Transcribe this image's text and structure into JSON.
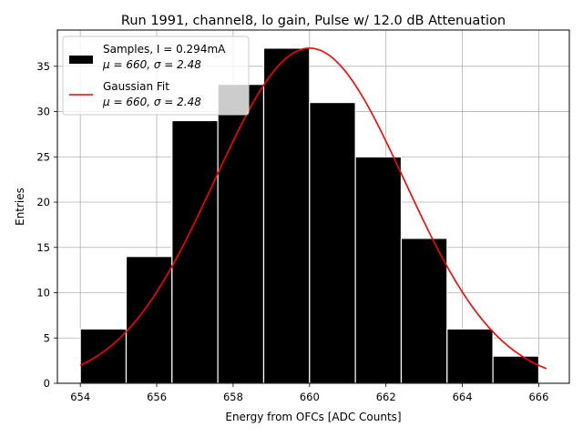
{
  "chart_data": {
    "type": "bar",
    "title": "Run 1991, channel8, lo gain, Pulse w/ 12.0 dB Attenuation",
    "xlabel": "Energy from OFCs [ADC Counts]",
    "ylabel": "Entries",
    "xlim": [
      653.4,
      666.8
    ],
    "ylim": [
      0,
      39
    ],
    "grid": true,
    "x_ticks": [
      654,
      656,
      658,
      660,
      662,
      664,
      666
    ],
    "y_ticks": [
      0,
      5,
      10,
      15,
      20,
      25,
      30,
      35
    ],
    "bins": {
      "edges": [
        654.0,
        655.2,
        656.4,
        657.6,
        658.8,
        660.0,
        661.2,
        662.4,
        663.6,
        664.8,
        666.0
      ],
      "counts": [
        6,
        14,
        29,
        33,
        37,
        31,
        25,
        16,
        6,
        3
      ]
    },
    "series": [
      {
        "name": "Samples",
        "type": "histogram",
        "color": "#000000",
        "edgecolor": "#ffffff"
      },
      {
        "name": "Gaussian Fit",
        "type": "line",
        "color": "#ff0000",
        "mu": 660.0,
        "sigma": 2.48,
        "amplitude": 37.0,
        "x_range": [
          654.0,
          666.2
        ]
      }
    ],
    "legend": {
      "position": "top-left",
      "entries": [
        {
          "line1": "Samples, I = 0.294mA",
          "line2_prefix": "μ = 660, ",
          "line2_suffix": "σ = 2.48"
        },
        {
          "line1": "Gaussian Fit",
          "line2_prefix": "μ = 660, ",
          "line2_suffix": "σ = 2.48"
        }
      ]
    }
  }
}
